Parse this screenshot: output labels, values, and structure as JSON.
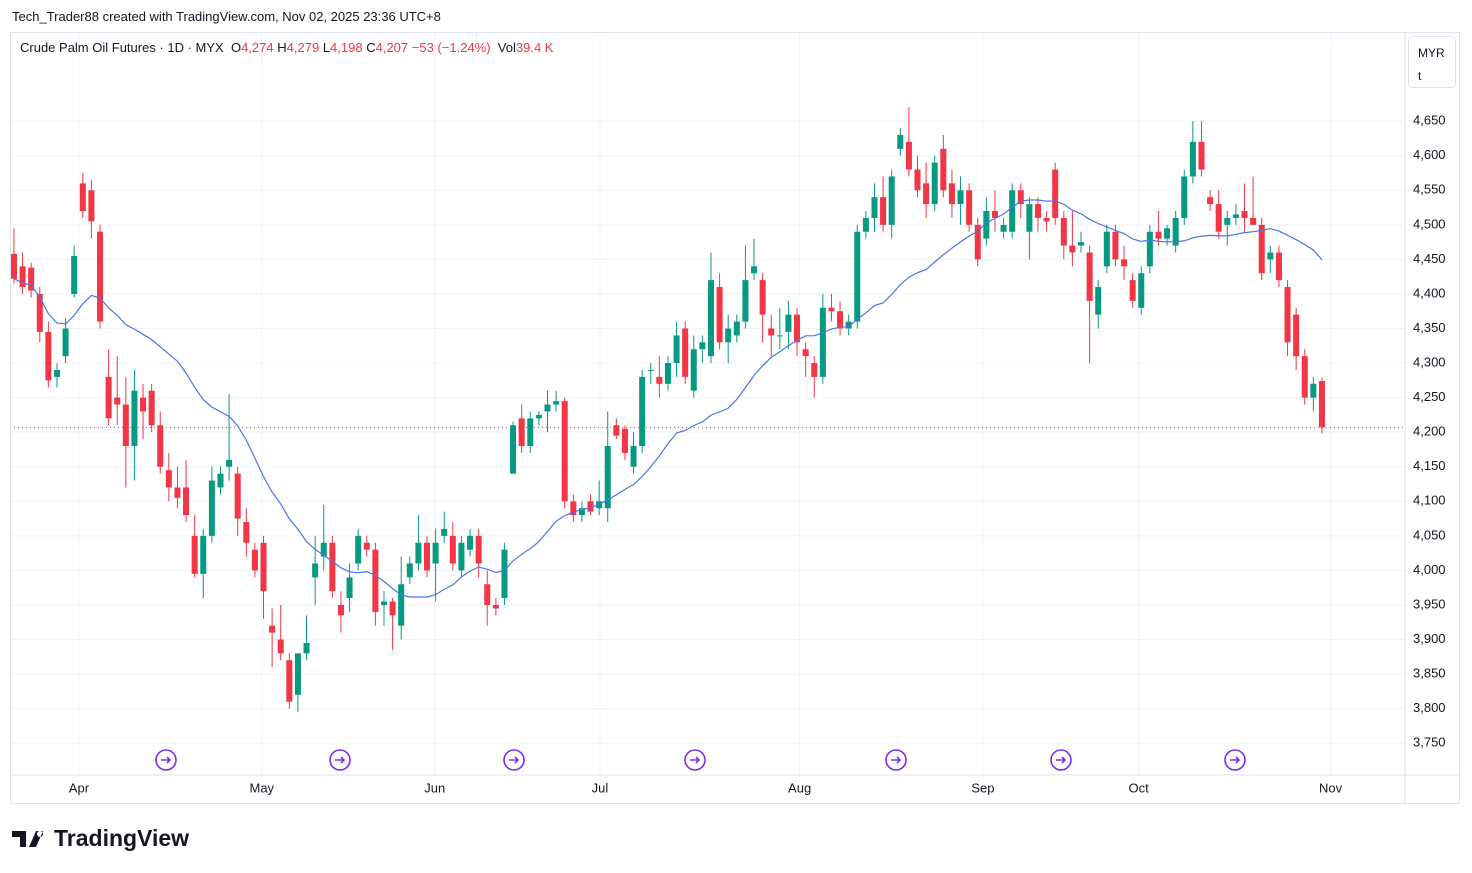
{
  "page": {
    "credit": "Tech_Trader88 created with TradingView.com, Nov 02, 2025 23:36 UTC+8",
    "logo": "TradingView",
    "currency": "MYR",
    "unit": "t",
    "header": {
      "symbol": "Crude Palm Oil Futures · 1D · MYX",
      "fields": [
        {
          "label": "O",
          "value": "4,274"
        },
        {
          "label": "H",
          "value": "4,279"
        },
        {
          "label": "L",
          "value": "4,198"
        },
        {
          "label": "C",
          "value": "4,207"
        }
      ],
      "change": "−53 (−1.24%)",
      "vol_label": "Vol",
      "vol": "39.4 K"
    }
  },
  "chart_data": {
    "type": "candlestick",
    "up_color": "#089981",
    "down_color": "#f23645",
    "ma_color": "#4a76e8",
    "ma_period": 20,
    "grid": true,
    "ylim": [
      3704,
      4779
    ],
    "xlim": [
      -0.46,
      161.65
    ],
    "yticks": [
      {
        "value": 3750,
        "label": "3,750"
      },
      {
        "value": 3800,
        "label": "3,800"
      },
      {
        "value": 3850,
        "label": "3,850"
      },
      {
        "value": 3900,
        "label": "3,900"
      },
      {
        "value": 3950,
        "label": "3,950"
      },
      {
        "value": 4000,
        "label": "4,000"
      },
      {
        "value": 4050,
        "label": "4,050"
      },
      {
        "value": 4100,
        "label": "4,100"
      },
      {
        "value": 4150,
        "label": "4,150"
      },
      {
        "value": 4200,
        "label": "4,200"
      },
      {
        "value": 4250,
        "label": "4,250"
      },
      {
        "value": 4300,
        "label": "4,300"
      },
      {
        "value": 4350,
        "label": "4,350"
      },
      {
        "value": 4400,
        "label": "4,400"
      },
      {
        "value": 4450,
        "label": "4,450"
      },
      {
        "value": 4500,
        "label": "4,500"
      },
      {
        "value": 4550,
        "label": "4,550"
      },
      {
        "value": 4600,
        "label": "4,600"
      },
      {
        "value": 4650,
        "label": "4,650"
      }
    ],
    "xticks": [
      {
        "value": 7.55,
        "label": "Apr"
      },
      {
        "value": 28.8,
        "label": "May"
      },
      {
        "value": 48.9,
        "label": "Jun"
      },
      {
        "value": 68.1,
        "label": "Jul"
      },
      {
        "value": 91.3,
        "label": "Aug"
      },
      {
        "value": 112.6,
        "label": "Sep"
      },
      {
        "value": 130.7,
        "label": "Oct"
      },
      {
        "value": 153,
        "label": "Nov"
      }
    ],
    "candles": [
      [
        4458,
        4495,
        4415,
        4422
      ],
      [
        4440,
        4460,
        4400,
        4410
      ],
      [
        4438,
        4445,
        4395,
        4405
      ],
      [
        4400,
        4410,
        4330,
        4345
      ],
      [
        4345,
        4360,
        4265,
        4275
      ],
      [
        4280,
        4300,
        4265,
        4290
      ],
      [
        4310,
        4365,
        4300,
        4350
      ],
      [
        4400,
        4470,
        4395,
        4455
      ],
      [
        4560,
        4575,
        4510,
        4520
      ],
      [
        4550,
        4565,
        4480,
        4505
      ],
      [
        4490,
        4500,
        4350,
        4360
      ],
      [
        4280,
        4320,
        4210,
        4220
      ],
      [
        4250,
        4310,
        4210,
        4240
      ],
      [
        4240,
        4280,
        4120,
        4180
      ],
      [
        4180,
        4290,
        4130,
        4260
      ],
      [
        4250,
        4270,
        4190,
        4230
      ],
      [
        4260,
        4270,
        4200,
        4210
      ],
      [
        4210,
        4230,
        4140,
        4150
      ],
      [
        4145,
        4170,
        4100,
        4120
      ],
      [
        4120,
        4150,
        4090,
        4105
      ],
      [
        4120,
        4160,
        4070,
        4080
      ],
      [
        4050,
        4080,
        3990,
        3995
      ],
      [
        3995,
        4060,
        3960,
        4050
      ],
      [
        4050,
        4150,
        4040,
        4130
      ],
      [
        4120,
        4150,
        4110,
        4140
      ],
      [
        4150,
        4255,
        4130,
        4160
      ],
      [
        4140,
        4150,
        4050,
        4075
      ],
      [
        4070,
        4090,
        4020,
        4040
      ],
      [
        4030,
        4040,
        3990,
        4000
      ],
      [
        4040,
        4050,
        3930,
        3970
      ],
      [
        3920,
        3945,
        3860,
        3910
      ],
      [
        3900,
        3950,
        3870,
        3880
      ],
      [
        3870,
        3880,
        3800,
        3810
      ],
      [
        3820,
        3880,
        3795,
        3880
      ],
      [
        3880,
        3935,
        3870,
        3895
      ],
      [
        3990,
        4050,
        3950,
        4010
      ],
      [
        4020,
        4095,
        4000,
        4040
      ],
      [
        4040,
        4050,
        3960,
        3970
      ],
      [
        3950,
        3970,
        3910,
        3935
      ],
      [
        3960,
        4010,
        3940,
        3990
      ],
      [
        4010,
        4060,
        4000,
        4050
      ],
      [
        4040,
        4050,
        4020,
        4030
      ],
      [
        4030,
        4040,
        3920,
        3940
      ],
      [
        3950,
        3970,
        3920,
        3955
      ],
      [
        3955,
        3960,
        3885,
        3935
      ],
      [
        3920,
        4020,
        3900,
        3980
      ],
      [
        3990,
        4020,
        3980,
        4010
      ],
      [
        4010,
        4080,
        4000,
        4040
      ],
      [
        4040,
        4050,
        3990,
        4000
      ],
      [
        4010,
        4060,
        3955,
        4040
      ],
      [
        4050,
        4085,
        4040,
        4060
      ],
      [
        4050,
        4070,
        4000,
        4010
      ],
      [
        4000,
        4050,
        3990,
        4040
      ],
      [
        4030,
        4060,
        4020,
        4050
      ],
      [
        4050,
        4060,
        3990,
        4010
      ],
      [
        3980,
        4000,
        3920,
        3950
      ],
      [
        3950,
        3960,
        3935,
        3945
      ],
      [
        3960,
        4040,
        3950,
        4030
      ],
      [
        4140,
        4215,
        4140,
        4210
      ],
      [
        4220,
        4240,
        4170,
        4180
      ],
      [
        4180,
        4230,
        4170,
        4220
      ],
      [
        4220,
        4230,
        4210,
        4225
      ],
      [
        4230,
        4260,
        4200,
        4240
      ],
      [
        4240,
        4260,
        4230,
        4245
      ],
      [
        4245,
        4250,
        4090,
        4100
      ],
      [
        4100,
        4110,
        4070,
        4080
      ],
      [
        4080,
        4100,
        4070,
        4090
      ],
      [
        4100,
        4110,
        4080,
        4085
      ],
      [
        4090,
        4130,
        4080,
        4100
      ],
      [
        4090,
        4230,
        4070,
        4180
      ],
      [
        4210,
        4220,
        4190,
        4195
      ],
      [
        4205,
        4210,
        4160,
        4170
      ],
      [
        4150,
        4200,
        4140,
        4180
      ],
      [
        4180,
        4290,
        4170,
        4280
      ],
      [
        4290,
        4300,
        4270,
        4290
      ],
      [
        4280,
        4310,
        4250,
        4270
      ],
      [
        4270,
        4310,
        4260,
        4300
      ],
      [
        4300,
        4360,
        4280,
        4340
      ],
      [
        4350,
        4360,
        4270,
        4280
      ],
      [
        4260,
        4340,
        4250,
        4320
      ],
      [
        4320,
        4340,
        4300,
        4330
      ],
      [
        4310,
        4460,
        4300,
        4420
      ],
      [
        4410,
        4430,
        4320,
        4330
      ],
      [
        4330,
        4370,
        4300,
        4350
      ],
      [
        4340,
        4370,
        4330,
        4360
      ],
      [
        4360,
        4470,
        4350,
        4420
      ],
      [
        4430,
        4480,
        4420,
        4440
      ],
      [
        4420,
        4430,
        4330,
        4370
      ],
      [
        4350,
        4370,
        4310,
        4340
      ],
      [
        4340,
        4380,
        4320,
        4340
      ],
      [
        4345,
        4390,
        4320,
        4370
      ],
      [
        4370,
        4380,
        4310,
        4330
      ],
      [
        4320,
        4330,
        4280,
        4310
      ],
      [
        4300,
        4310,
        4250,
        4280
      ],
      [
        4280,
        4400,
        4270,
        4380
      ],
      [
        4380,
        4400,
        4360,
        4375
      ],
      [
        4375,
        4390,
        4340,
        4350
      ],
      [
        4350,
        4370,
        4340,
        4360
      ],
      [
        4360,
        4500,
        4350,
        4490
      ],
      [
        4490,
        4520,
        4480,
        4510
      ],
      [
        4510,
        4560,
        4490,
        4540
      ],
      [
        4540,
        4570,
        4490,
        4500
      ],
      [
        4500,
        4580,
        4480,
        4570
      ],
      [
        4610,
        4640,
        4600,
        4630
      ],
      [
        4620,
        4670,
        4570,
        4580
      ],
      [
        4580,
        4600,
        4540,
        4550
      ],
      [
        4560,
        4590,
        4510,
        4530
      ],
      [
        4530,
        4600,
        4520,
        4590
      ],
      [
        4610,
        4630,
        4540,
        4550
      ],
      [
        4560,
        4580,
        4510,
        4530
      ],
      [
        4530,
        4570,
        4500,
        4550
      ],
      [
        4550,
        4560,
        4490,
        4500
      ],
      [
        4500,
        4510,
        4440,
        4450
      ],
      [
        4480,
        4540,
        4470,
        4520
      ],
      [
        4520,
        4550,
        4490,
        4510
      ],
      [
        4490,
        4510,
        4480,
        4500
      ],
      [
        4490,
        4560,
        4480,
        4550
      ],
      [
        4550,
        4560,
        4510,
        4530
      ],
      [
        4490,
        4540,
        4450,
        4530
      ],
      [
        4530,
        4540,
        4490,
        4510
      ],
      [
        4510,
        4520,
        4490,
        4505
      ],
      [
        4580,
        4590,
        4500,
        4510
      ],
      [
        4510,
        4520,
        4450,
        4470
      ],
      [
        4470,
        4520,
        4440,
        4460
      ],
      [
        4470,
        4490,
        4460,
        4475
      ],
      [
        4460,
        4470,
        4300,
        4390
      ],
      [
        4370,
        4420,
        4350,
        4410
      ],
      [
        4440,
        4500,
        4430,
        4490
      ],
      [
        4490,
        4500,
        4440,
        4450
      ],
      [
        4450,
        4470,
        4420,
        4440
      ],
      [
        4420,
        4430,
        4380,
        4390
      ],
      [
        4380,
        4440,
        4370,
        4430
      ],
      [
        4440,
        4500,
        4430,
        4490
      ],
      [
        4490,
        4520,
        4470,
        4480
      ],
      [
        4480,
        4500,
        4470,
        4495
      ],
      [
        4470,
        4520,
        4460,
        4510
      ],
      [
        4510,
        4580,
        4500,
        4570
      ],
      [
        4570,
        4650,
        4560,
        4620
      ],
      [
        4620,
        4650,
        4570,
        4580
      ],
      [
        4540,
        4550,
        4520,
        4530
      ],
      [
        4530,
        4550,
        4480,
        4490
      ],
      [
        4500,
        4520,
        4470,
        4510
      ],
      [
        4510,
        4530,
        4500,
        4515
      ],
      [
        4520,
        4560,
        4490,
        4510
      ],
      [
        4510,
        4570,
        4500,
        4500
      ],
      [
        4500,
        4510,
        4420,
        4430
      ],
      [
        4450,
        4470,
        4430,
        4460
      ],
      [
        4460,
        4470,
        4410,
        4420
      ],
      [
        4410,
        4420,
        4310,
        4330
      ],
      [
        4370,
        4380,
        4290,
        4310
      ],
      [
        4310,
        4320,
        4240,
        4250
      ],
      [
        4250,
        4280,
        4230,
        4270
      ],
      [
        4274,
        4279,
        4198,
        4207
      ]
    ]
  }
}
